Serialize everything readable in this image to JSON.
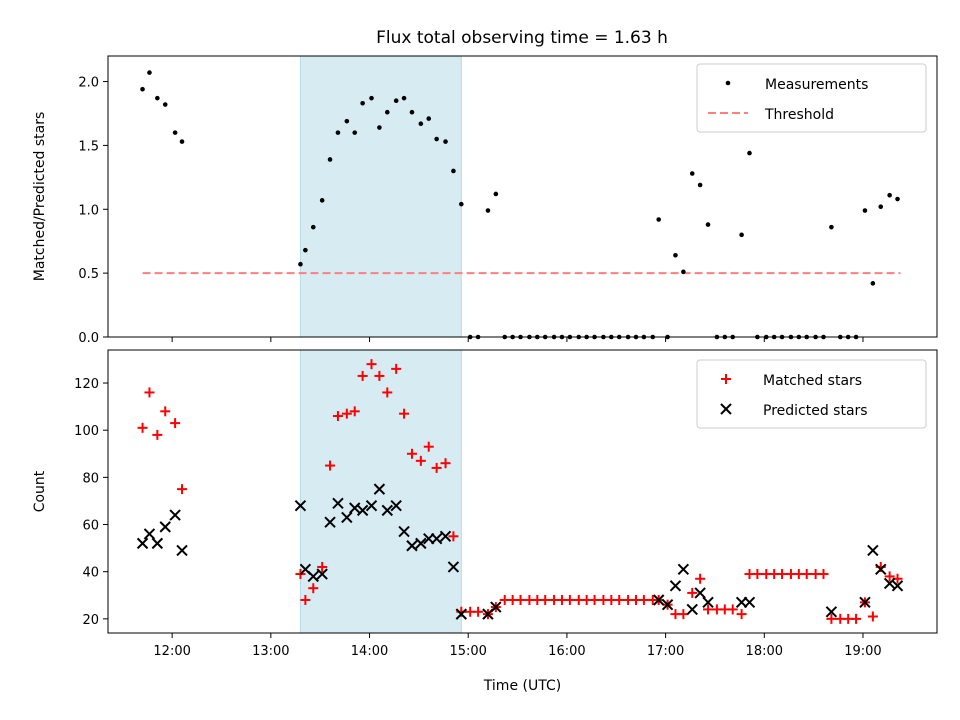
{
  "title": "Flux total observing time = 1.63 h",
  "colors": {
    "measurements": "#000000",
    "threshold": "#ff7f7f",
    "matched": "#ff0000",
    "predicted": "#000000",
    "shade": "#add8e6"
  },
  "legend_top": {
    "measurements": "Measurements",
    "threshold": "Threshold"
  },
  "legend_bottom": {
    "matched": "Matched stars",
    "predicted": "Predicted stars"
  },
  "chart_data": [
    {
      "type": "scatter",
      "title": "Flux total observing time = 1.63 h",
      "xlabel": "",
      "ylabel": "Matched/Predicted stars",
      "x_unit": "hours UTC",
      "xlim": [
        11.35,
        19.75
      ],
      "ylim": [
        0,
        2.2
      ],
      "x_ticks": [
        "12:00",
        "13:00",
        "14:00",
        "15:00",
        "16:00",
        "17:00",
        "18:00",
        "19:00"
      ],
      "y_ticks": [
        "0.0",
        "0.5",
        "1.0",
        "1.5",
        "2.0"
      ],
      "legend_position": "upper right",
      "shaded_span": [
        13.3,
        14.93
      ],
      "threshold": {
        "value": 0.5,
        "x_range": [
          11.7,
          19.38
        ]
      },
      "series": [
        {
          "name": "Measurements",
          "points": [
            [
              11.7,
              1.94
            ],
            [
              11.77,
              2.07
            ],
            [
              11.85,
              1.87
            ],
            [
              11.93,
              1.82
            ],
            [
              12.03,
              1.6
            ],
            [
              12.1,
              1.53
            ],
            [
              13.3,
              0.57
            ],
            [
              13.35,
              0.68
            ],
            [
              13.43,
              0.86
            ],
            [
              13.52,
              1.07
            ],
            [
              13.6,
              1.39
            ],
            [
              13.68,
              1.6
            ],
            [
              13.77,
              1.69
            ],
            [
              13.85,
              1.6
            ],
            [
              13.93,
              1.83
            ],
            [
              14.02,
              1.87
            ],
            [
              14.1,
              1.64
            ],
            [
              14.18,
              1.76
            ],
            [
              14.27,
              1.85
            ],
            [
              14.35,
              1.87
            ],
            [
              14.43,
              1.76
            ],
            [
              14.52,
              1.67
            ],
            [
              14.6,
              1.71
            ],
            [
              14.68,
              1.55
            ],
            [
              14.77,
              1.53
            ],
            [
              14.85,
              1.3
            ],
            [
              14.93,
              1.04
            ],
            [
              15.02,
              0.0
            ],
            [
              15.1,
              0.0
            ],
            [
              15.2,
              0.99
            ],
            [
              15.28,
              1.12
            ],
            [
              15.37,
              0.0
            ],
            [
              15.45,
              0.0
            ],
            [
              15.53,
              0.0
            ],
            [
              15.62,
              0.0
            ],
            [
              15.7,
              0.0
            ],
            [
              15.78,
              0.0
            ],
            [
              15.87,
              0.0
            ],
            [
              15.95,
              0.0
            ],
            [
              16.03,
              0.0
            ],
            [
              16.12,
              0.0
            ],
            [
              16.2,
              0.0
            ],
            [
              16.28,
              0.0
            ],
            [
              16.37,
              0.0
            ],
            [
              16.45,
              0.0
            ],
            [
              16.53,
              0.0
            ],
            [
              16.62,
              0.0
            ],
            [
              16.7,
              0.0
            ],
            [
              16.78,
              0.0
            ],
            [
              16.87,
              0.0
            ],
            [
              16.93,
              0.92
            ],
            [
              17.02,
              0.0
            ],
            [
              17.1,
              0.64
            ],
            [
              17.18,
              0.51
            ],
            [
              17.27,
              1.28
            ],
            [
              17.35,
              1.19
            ],
            [
              17.43,
              0.88
            ],
            [
              17.52,
              0.0
            ],
            [
              17.6,
              0.0
            ],
            [
              17.68,
              0.0
            ],
            [
              17.77,
              0.8
            ],
            [
              17.85,
              1.44
            ],
            [
              17.93,
              0.0
            ],
            [
              18.02,
              0.0
            ],
            [
              18.1,
              0.0
            ],
            [
              18.18,
              0.0
            ],
            [
              18.27,
              0.0
            ],
            [
              18.35,
              0.0
            ],
            [
              18.43,
              0.0
            ],
            [
              18.52,
              0.0
            ],
            [
              18.6,
              0.0
            ],
            [
              18.68,
              0.86
            ],
            [
              18.77,
              0.0
            ],
            [
              18.85,
              0.0
            ],
            [
              18.93,
              0.0
            ],
            [
              19.02,
              0.99
            ],
            [
              19.1,
              0.42
            ],
            [
              19.18,
              1.02
            ],
            [
              19.27,
              1.11
            ],
            [
              19.35,
              1.08
            ]
          ]
        },
        {
          "name": "Threshold",
          "values": [
            0.5,
            0.5
          ]
        }
      ]
    },
    {
      "type": "scatter",
      "xlabel": "Time (UTC)",
      "ylabel": "Count",
      "x_unit": "hours UTC",
      "xlim": [
        11.35,
        19.75
      ],
      "ylim": [
        14,
        134
      ],
      "x_ticks": [
        "12:00",
        "13:00",
        "14:00",
        "15:00",
        "16:00",
        "17:00",
        "18:00",
        "19:00"
      ],
      "y_ticks": [
        "20",
        "40",
        "60",
        "80",
        "100",
        "120"
      ],
      "legend_position": "upper right",
      "shaded_span": [
        13.3,
        14.93
      ],
      "series": [
        {
          "name": "Matched stars",
          "points": [
            [
              11.7,
              101
            ],
            [
              11.77,
              116
            ],
            [
              11.85,
              98
            ],
            [
              11.93,
              108
            ],
            [
              12.03,
              103
            ],
            [
              12.1,
              75
            ],
            [
              13.3,
              39
            ],
            [
              13.35,
              28
            ],
            [
              13.43,
              33
            ],
            [
              13.52,
              42
            ],
            [
              13.6,
              85
            ],
            [
              13.68,
              106
            ],
            [
              13.77,
              107
            ],
            [
              13.85,
              108
            ],
            [
              13.93,
              123
            ],
            [
              14.02,
              128
            ],
            [
              14.1,
              123
            ],
            [
              14.18,
              116
            ],
            [
              14.27,
              126
            ],
            [
              14.35,
              107
            ],
            [
              14.43,
              90
            ],
            [
              14.52,
              87
            ],
            [
              14.6,
              93
            ],
            [
              14.68,
              84
            ],
            [
              14.77,
              86
            ],
            [
              14.85,
              55
            ],
            [
              14.93,
              23
            ],
            [
              15.02,
              23
            ],
            [
              15.1,
              23
            ],
            [
              15.2,
              22
            ],
            [
              15.28,
              25
            ],
            [
              15.37,
              28
            ],
            [
              15.45,
              28
            ],
            [
              15.53,
              28
            ],
            [
              15.62,
              28
            ],
            [
              15.7,
              28
            ],
            [
              15.78,
              28
            ],
            [
              15.87,
              28
            ],
            [
              15.95,
              28
            ],
            [
              16.03,
              28
            ],
            [
              16.12,
              28
            ],
            [
              16.2,
              28
            ],
            [
              16.28,
              28
            ],
            [
              16.37,
              28
            ],
            [
              16.45,
              28
            ],
            [
              16.53,
              28
            ],
            [
              16.62,
              28
            ],
            [
              16.7,
              28
            ],
            [
              16.78,
              28
            ],
            [
              16.87,
              28
            ],
            [
              16.93,
              28
            ],
            [
              17.02,
              26
            ],
            [
              17.1,
              22
            ],
            [
              17.18,
              22
            ],
            [
              17.27,
              31
            ],
            [
              17.35,
              37
            ],
            [
              17.43,
              24
            ],
            [
              17.52,
              24
            ],
            [
              17.6,
              24
            ],
            [
              17.68,
              24
            ],
            [
              17.77,
              22
            ],
            [
              17.85,
              39
            ],
            [
              17.93,
              39
            ],
            [
              18.02,
              39
            ],
            [
              18.1,
              39
            ],
            [
              18.18,
              39
            ],
            [
              18.27,
              39
            ],
            [
              18.35,
              39
            ],
            [
              18.43,
              39
            ],
            [
              18.52,
              39
            ],
            [
              18.6,
              39
            ],
            [
              18.68,
              20
            ],
            [
              18.77,
              20
            ],
            [
              18.85,
              20
            ],
            [
              18.93,
              20
            ],
            [
              19.02,
              27
            ],
            [
              19.1,
              21
            ],
            [
              19.18,
              42
            ],
            [
              19.27,
              38
            ],
            [
              19.35,
              37
            ]
          ]
        },
        {
          "name": "Predicted stars",
          "points": [
            [
              11.7,
              52
            ],
            [
              11.77,
              56
            ],
            [
              11.85,
              52
            ],
            [
              11.93,
              59
            ],
            [
              12.03,
              64
            ],
            [
              12.1,
              49
            ],
            [
              13.3,
              68
            ],
            [
              13.35,
              41
            ],
            [
              13.43,
              38
            ],
            [
              13.52,
              39
            ],
            [
              13.6,
              61
            ],
            [
              13.68,
              69
            ],
            [
              13.77,
              63
            ],
            [
              13.85,
              67
            ],
            [
              13.93,
              66
            ],
            [
              14.02,
              68
            ],
            [
              14.1,
              75
            ],
            [
              14.18,
              66
            ],
            [
              14.27,
              68
            ],
            [
              14.35,
              57
            ],
            [
              14.43,
              51
            ],
            [
              14.52,
              52
            ],
            [
              14.6,
              54
            ],
            [
              14.68,
              54
            ],
            [
              14.77,
              55
            ],
            [
              14.85,
              42
            ],
            [
              14.93,
              22
            ],
            [
              15.2,
              22
            ],
            [
              15.28,
              25
            ],
            [
              16.93,
              28
            ],
            [
              17.02,
              26
            ],
            [
              17.1,
              34
            ],
            [
              17.18,
              41
            ],
            [
              17.27,
              24
            ],
            [
              17.35,
              31
            ],
            [
              17.43,
              27
            ],
            [
              17.77,
              27
            ],
            [
              17.85,
              27
            ],
            [
              18.68,
              23
            ],
            [
              19.02,
              27
            ],
            [
              19.1,
              49
            ],
            [
              19.18,
              41
            ],
            [
              19.27,
              35
            ],
            [
              19.35,
              34
            ]
          ]
        }
      ]
    }
  ]
}
